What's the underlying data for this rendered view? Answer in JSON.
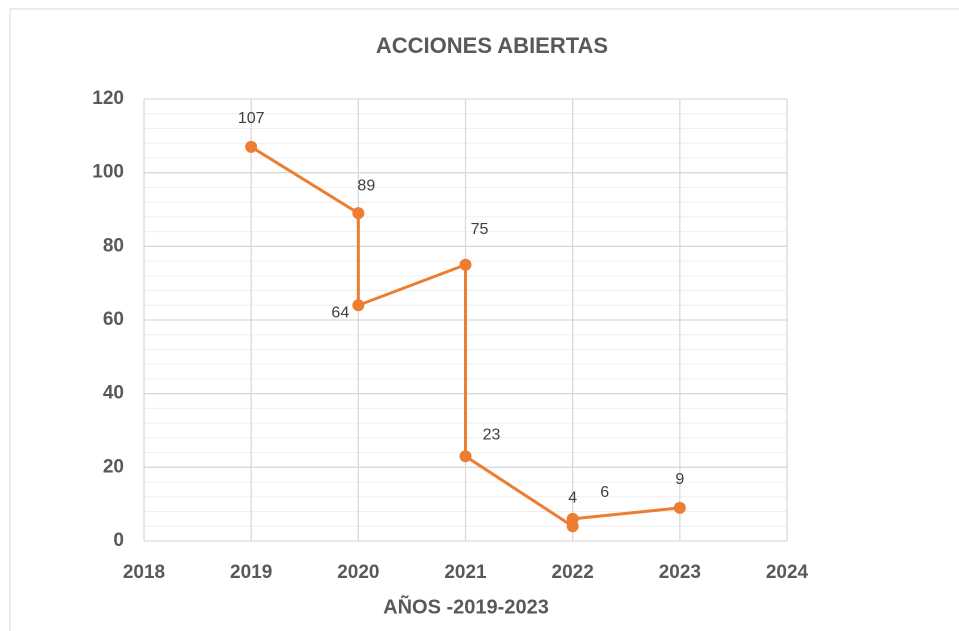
{
  "chart_data": {
    "type": "scatter",
    "title": "ACCIONES ABIERTAS",
    "x_label": "AÑOS -2019-2023",
    "x": [
      2019,
      2020,
      2020,
      2021,
      2021,
      2022,
      2022,
      2023
    ],
    "series": [
      {
        "color": "#ED7D31",
        "values": [
          107,
          89,
          64,
          75,
          23,
          4,
          6,
          9
        ]
      }
    ],
    "xlim": [
      2018,
      2024
    ],
    "xticks": [
      2018,
      2019,
      2020,
      2021,
      2022,
      2023,
      2024
    ],
    "ylim": [
      0,
      120
    ],
    "yticks": [
      0,
      20,
      40,
      60,
      80,
      100,
      120
    ],
    "yminor_ticks": [
      4,
      8,
      12,
      16,
      24,
      28,
      32,
      36,
      44,
      48,
      52,
      56,
      64,
      68,
      72,
      76,
      84,
      88,
      92,
      96,
      104,
      108,
      112,
      116
    ],
    "grid": true,
    "lines": true
  }
}
